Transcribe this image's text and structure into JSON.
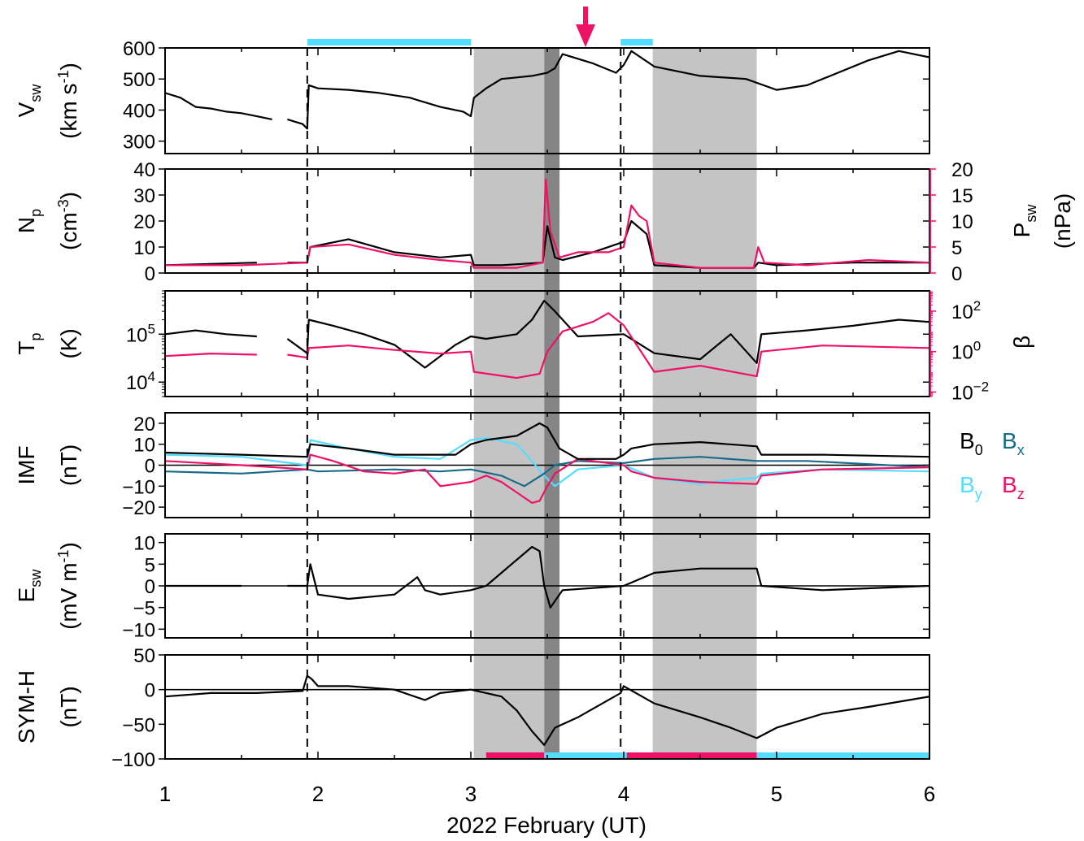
{
  "colors": {
    "black": "#000000",
    "pink": "#ee1166",
    "cyan": "#55ddff",
    "teal": "#1a6b8a",
    "shade_light": "#c4c4c4",
    "shade_dark": "#858585"
  },
  "icons": {
    "event_marker": "down-arrow-icon"
  },
  "chart_data": {
    "type": "line",
    "xlabel": "2022 February (UT)",
    "xlim": [
      1,
      6
    ],
    "x_ticks": [
      "1",
      "2",
      "3",
      "4",
      "5",
      "6"
    ],
    "shaded_intervals": [
      {
        "x": [
          3.02,
          3.48
        ],
        "tone": "light"
      },
      {
        "x": [
          3.48,
          3.58
        ],
        "tone": "dark"
      },
      {
        "x": [
          4.19,
          4.87
        ],
        "tone": "light"
      }
    ],
    "dashed_lines_x": [
      1.93,
      3.98
    ],
    "event_arrow_x": 3.75,
    "top_bars": [
      {
        "x": [
          1.93,
          3.0
        ],
        "color": "cyan"
      },
      {
        "x": [
          3.98,
          4.19
        ],
        "color": "cyan"
      }
    ],
    "bottom_bars": [
      {
        "x": [
          3.1,
          3.48
        ],
        "color": "pink"
      },
      {
        "x": [
          3.48,
          4.02
        ],
        "color": "cyan"
      },
      {
        "x": [
          4.02,
          4.87
        ],
        "color": "pink"
      },
      {
        "x": [
          4.87,
          6.0
        ],
        "color": "cyan"
      }
    ],
    "panels": [
      {
        "id": "vsw",
        "ylabel_sym": "V",
        "ylabel_sub": "sw",
        "ylabel_unit_pre": "(km s",
        "ylabel_unit_sup": "-1",
        "ylabel_unit_post": ")",
        "ylim": [
          260,
          600
        ],
        "yticks": [
          300,
          400,
          500,
          600
        ],
        "ytick_labels": [
          "300",
          "400",
          "500",
          "600"
        ],
        "zero_line": false,
        "series": [
          {
            "name": "Vsw",
            "color": "black",
            "x": [
              1.0,
              1.1,
              1.2,
              1.3,
              1.4,
              1.5,
              1.6,
              1.7,
              1.76,
              1.8,
              1.9,
              1.93,
              1.94,
              2.0,
              2.2,
              2.4,
              2.6,
              2.8,
              2.95,
              3.0,
              3.02,
              3.1,
              3.2,
              3.3,
              3.4,
              3.5,
              3.55,
              3.6,
              3.8,
              3.95,
              4.0,
              4.05,
              4.2,
              4.5,
              4.8,
              5.0,
              5.2,
              5.4,
              5.6,
              5.8,
              6.0
            ],
            "y": [
              455,
              440,
              410,
              405,
              395,
              390,
              380,
              370,
              null,
              370,
              355,
              340,
              480,
              470,
              465,
              455,
              440,
              410,
              395,
              380,
              440,
              470,
              500,
              505,
              510,
              520,
              535,
              580,
              550,
              520,
              545,
              590,
              540,
              510,
              500,
              465,
              480,
              520,
              560,
              590,
              570
            ]
          }
        ]
      },
      {
        "id": "np",
        "ylabel_sym": "N",
        "ylabel_sub": "p",
        "ylabel_unit_pre": "(cm",
        "ylabel_unit_sup": "-3",
        "ylabel_unit_post": ")",
        "ylim": [
          0,
          40
        ],
        "yticks": [
          0,
          10,
          20,
          30,
          40
        ],
        "ytick_labels": [
          "0",
          "10",
          "20",
          "30",
          "40"
        ],
        "right_ylabel": "P",
        "right_ylabel_sub": "sw",
        "right_ylabel_unit": "(nPa)",
        "right_ylim": [
          0,
          20
        ],
        "right_yticks": [
          0,
          5,
          10,
          15,
          20
        ],
        "right_ytick_labels": [
          "0",
          "5",
          "10",
          "15",
          "20"
        ],
        "zero_line": false,
        "series": [
          {
            "name": "Np",
            "color": "black",
            "x": [
              1.0,
              1.3,
              1.6,
              1.76,
              1.8,
              1.93,
              1.95,
              2.2,
              2.5,
              2.8,
              3.0,
              3.02,
              3.2,
              3.47,
              3.5,
              3.55,
              3.6,
              3.8,
              4.0,
              4.05,
              4.15,
              4.2,
              4.5,
              4.85,
              4.88,
              5.0,
              5.5,
              6.0
            ],
            "y": [
              3,
              3.5,
              4,
              null,
              4,
              4,
              10,
              13,
              8,
              6,
              7,
              3,
              3,
              4,
              18,
              6,
              5,
              8,
              12,
              20,
              15,
              3,
              2,
              2,
              4,
              3,
              4,
              4
            ]
          },
          {
            "name": "Psw",
            "color": "pink",
            "axis": "right",
            "x": [
              1.0,
              1.5,
              1.93,
              1.95,
              2.2,
              2.5,
              2.8,
              3.0,
              3.02,
              3.3,
              3.47,
              3.49,
              3.52,
              3.58,
              3.7,
              3.9,
              4.0,
              4.05,
              4.1,
              4.15,
              4.2,
              4.5,
              4.85,
              4.88,
              4.92,
              5.2,
              5.6,
              6.0
            ],
            "y": [
              1.5,
              1.5,
              2,
              5,
              5.5,
              3.5,
              2.5,
              2,
              1,
              1,
              2,
              18,
              8,
              3,
              4,
              4,
              5,
              13,
              11,
              10,
              2,
              1,
              1,
              5,
              2,
              1.5,
              2.5,
              2
            ]
          }
        ]
      },
      {
        "id": "tp",
        "ylabel_sym": "T",
        "ylabel_sub": "p",
        "ylabel_unit_pre": "(K)",
        "ylog": true,
        "ylim": [
          5000,
          800000
        ],
        "yticks": [
          10000,
          100000
        ],
        "ytick_labels": [
          "10^4",
          "10^5"
        ],
        "right_ylabel": "β",
        "right_ylog": true,
        "right_ylim": [
          0.006,
          1000
        ],
        "right_yticks": [
          0.01,
          1,
          100
        ],
        "right_ytick_labels": [
          "10^-2",
          "10^0",
          "10^2"
        ],
        "zero_line": false,
        "series": [
          {
            "name": "Tp",
            "color": "black",
            "x": [
              1.0,
              1.2,
              1.4,
              1.6,
              1.76,
              1.8,
              1.93,
              1.94,
              2.1,
              2.3,
              2.5,
              2.7,
              2.9,
              3.0,
              3.1,
              3.3,
              3.4,
              3.48,
              3.55,
              3.7,
              4.0,
              4.2,
              4.5,
              4.7,
              4.87,
              4.9,
              5.2,
              5.5,
              5.8,
              6.0
            ],
            "y": [
              100000,
              120000,
              100000,
              90000,
              null,
              80000,
              40000,
              200000,
              150000,
              100000,
              60000,
              20000,
              60000,
              90000,
              80000,
              100000,
              200000,
              500000,
              300000,
              90000,
              100000,
              40000,
              30000,
              100000,
              25000,
              100000,
              120000,
              150000,
              200000,
              180000
            ]
          },
          {
            "name": "β",
            "color": "pink",
            "axis": "right",
            "x": [
              1.0,
              1.3,
              1.6,
              1.76,
              1.8,
              1.93,
              1.94,
              2.2,
              2.5,
              2.8,
              3.0,
              3.02,
              3.3,
              3.45,
              3.5,
              3.6,
              3.8,
              3.9,
              4.0,
              4.2,
              4.5,
              4.87,
              4.9,
              5.3,
              6.0
            ],
            "y": [
              0.6,
              0.8,
              0.7,
              null,
              0.7,
              0.5,
              1.5,
              2,
              1.2,
              0.8,
              1,
              0.1,
              0.05,
              0.08,
              1,
              10,
              30,
              80,
              20,
              0.1,
              0.2,
              0.06,
              1,
              2,
              1.5
            ]
          }
        ]
      },
      {
        "id": "imf",
        "ylabel_sym": "IMF",
        "ylabel_unit_pre": "(nT)",
        "ylim": [
          -25,
          25
        ],
        "yticks": [
          -20,
          -10,
          0,
          10,
          20
        ],
        "ytick_labels": [
          "−20",
          "−10",
          "0",
          "10",
          "20"
        ],
        "zero_line": true,
        "legend": [
          {
            "sym": "B",
            "sub": "0",
            "color": "black"
          },
          {
            "sym": "B",
            "sub": "x",
            "color": "teal"
          },
          {
            "sym": "B",
            "sub": "y",
            "color": "cyan"
          },
          {
            "sym": "B",
            "sub": "z",
            "color": "pink"
          }
        ],
        "series": [
          {
            "name": "By",
            "color": "cyan",
            "x": [
              1.0,
              1.5,
              1.93,
              1.95,
              2.2,
              2.5,
              2.8,
              3.0,
              3.1,
              3.3,
              3.4,
              3.48,
              3.55,
              3.7,
              4.0,
              4.2,
              4.5,
              4.7,
              4.87,
              4.9,
              5.3,
              6.0
            ],
            "y": [
              5,
              4,
              0,
              12,
              8,
              4,
              3,
              12,
              13,
              10,
              2,
              -5,
              -10,
              -2,
              0,
              -6,
              -9,
              -7,
              -6,
              -4,
              -2,
              -3
            ]
          },
          {
            "name": "Bx",
            "color": "teal",
            "x": [
              1.0,
              1.5,
              1.93,
              2.0,
              2.5,
              2.8,
              3.0,
              3.2,
              3.35,
              3.48,
              3.55,
              3.7,
              4.0,
              4.2,
              4.5,
              4.87,
              5.2,
              6.0
            ],
            "y": [
              -3,
              -4,
              -2,
              -3,
              -2,
              -3,
              -2,
              -5,
              -10,
              -4,
              0,
              2,
              1,
              3,
              4,
              2,
              2,
              -1
            ]
          },
          {
            "name": "Bz",
            "color": "pink",
            "x": [
              1.0,
              1.5,
              1.93,
              1.95,
              2.1,
              2.3,
              2.5,
              2.7,
              2.8,
              3.0,
              3.1,
              3.2,
              3.3,
              3.4,
              3.45,
              3.5,
              3.55,
              3.7,
              4.0,
              4.05,
              4.2,
              4.5,
              4.87,
              4.9,
              5.3,
              6.0
            ],
            "y": [
              2,
              0,
              -2,
              5,
              2,
              -3,
              -4,
              -2,
              -10,
              -8,
              -5,
              -8,
              -13,
              -18,
              -17,
              -10,
              -4,
              3,
              0,
              -3,
              -6,
              -8,
              -9,
              -5,
              -2,
              -1
            ]
          },
          {
            "name": "B0",
            "color": "black",
            "x": [
              1.0,
              1.5,
              1.93,
              1.95,
              2.2,
              2.5,
              2.9,
              3.0,
              3.1,
              3.3,
              3.45,
              3.5,
              3.58,
              3.7,
              3.95,
              4.0,
              4.05,
              4.2,
              4.5,
              4.87,
              4.9,
              5.3,
              6.0
            ],
            "y": [
              6,
              5,
              4,
              10,
              8,
              5,
              5,
              10,
              12,
              14,
              20,
              18,
              8,
              3,
              3,
              5,
              8,
              10,
              11,
              9,
              5,
              5,
              4
            ]
          }
        ]
      },
      {
        "id": "esw",
        "ylabel_sym": "E",
        "ylabel_sub": "sw",
        "ylabel_unit_pre": "(mV m",
        "ylabel_unit_sup": "-1",
        "ylabel_unit_post": ")",
        "ylim": [
          -12,
          12
        ],
        "yticks": [
          -10,
          -5,
          0,
          5,
          10
        ],
        "ytick_labels": [
          "−10",
          "−5",
          "0",
          "5",
          "10"
        ],
        "zero_line": true,
        "series": [
          {
            "name": "Esw",
            "color": "black",
            "x": [
              1.0,
              1.5,
              1.76,
              1.8,
              1.93,
              1.95,
              2.0,
              2.2,
              2.5,
              2.65,
              2.7,
              2.8,
              3.0,
              3.1,
              3.2,
              3.3,
              3.4,
              3.45,
              3.48,
              3.52,
              3.6,
              4.0,
              4.2,
              4.5,
              4.87,
              4.9,
              5.3,
              6.0
            ],
            "y": [
              0,
              0,
              null,
              0,
              0,
              5,
              -2,
              -3,
              -2,
              2,
              -1,
              -2,
              -1,
              0,
              3,
              6,
              9,
              8,
              0,
              -5,
              -1,
              0,
              3,
              4,
              4,
              0,
              -1,
              0
            ]
          }
        ]
      },
      {
        "id": "symh",
        "ylabel_sym": "SYM-H",
        "ylabel_unit_pre": "(nT)",
        "ylim": [
          -100,
          50
        ],
        "yticks": [
          -100,
          -50,
          0,
          50
        ],
        "ytick_labels": [
          "−100",
          "−50",
          "0",
          "50"
        ],
        "zero_line": true,
        "series": [
          {
            "name": "SYM-H",
            "color": "black",
            "x": [
              1.0,
              1.3,
              1.6,
              1.9,
              1.93,
              1.96,
              2.0,
              2.2,
              2.5,
              2.7,
              2.8,
              3.0,
              3.2,
              3.3,
              3.4,
              3.48,
              3.55,
              3.7,
              3.98,
              4.0,
              4.2,
              4.5,
              4.7,
              4.87,
              5.0,
              5.3,
              5.6,
              6.0
            ],
            "y": [
              -10,
              -5,
              -5,
              -2,
              20,
              15,
              5,
              5,
              0,
              -15,
              -5,
              0,
              -10,
              -30,
              -60,
              -80,
              -55,
              -40,
              -5,
              5,
              -20,
              -40,
              -55,
              -70,
              -55,
              -35,
              -25,
              -10
            ]
          }
        ]
      }
    ]
  }
}
